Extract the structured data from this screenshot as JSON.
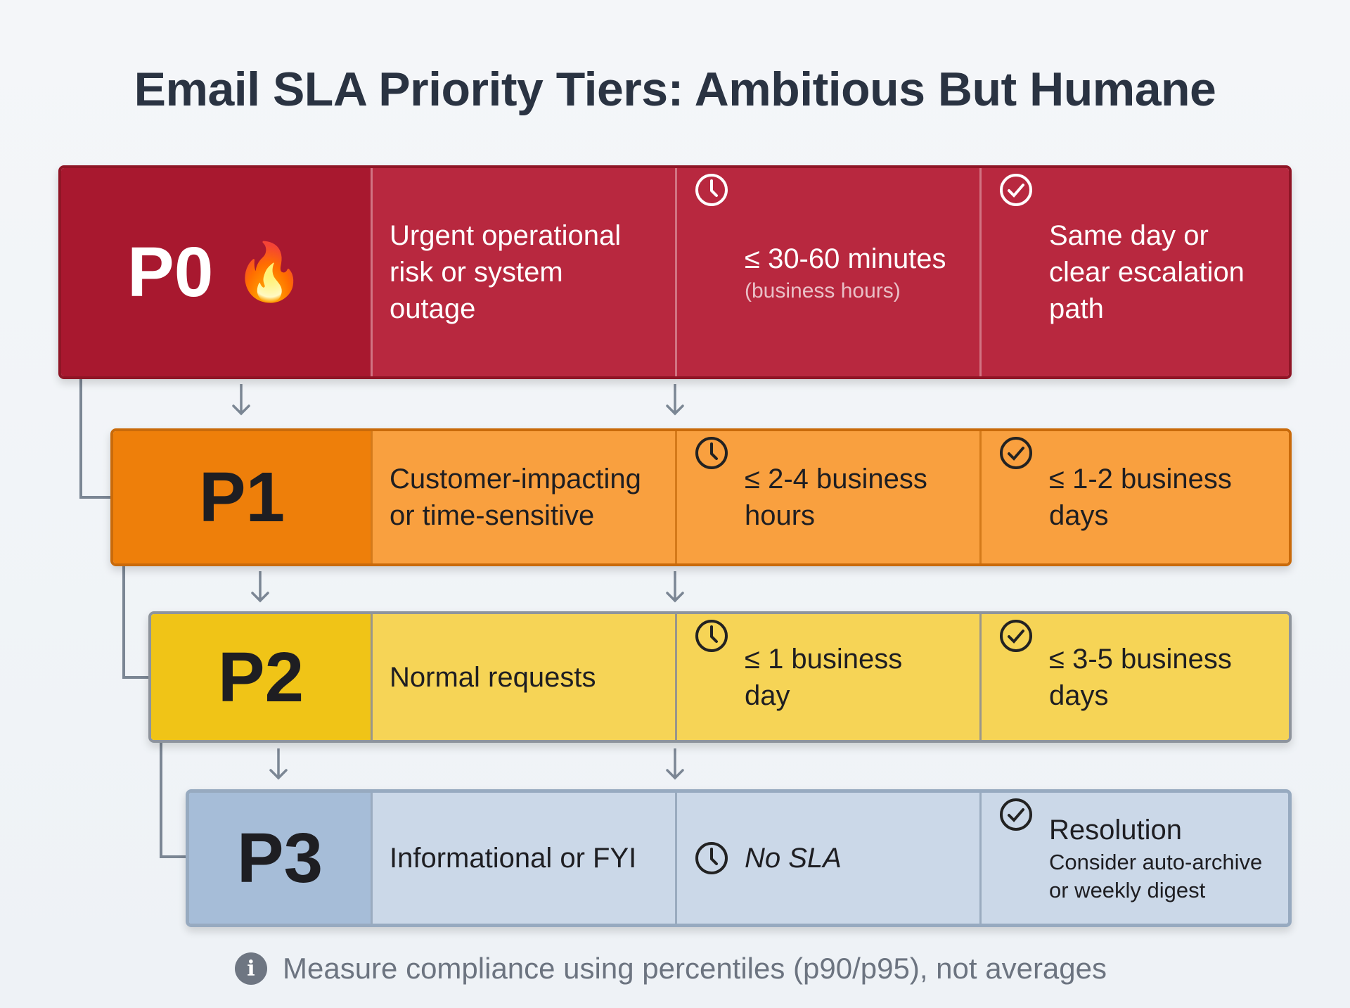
{
  "title": "Email SLA Priority Tiers: Ambitious But Humane",
  "colors": {
    "p0_label": "#a8182f",
    "p0_cells": "#b8283f",
    "p1_label": "#ee7f0a",
    "p1_cells": "#f9a03f",
    "p2_label": "#f0c417",
    "p2_cells": "#f6d456",
    "p3_label": "#a6bdd8",
    "p3_cells": "#cbd8e8"
  },
  "tiers": [
    {
      "label": "P0",
      "emoji": "🔥",
      "description": "Urgent operational risk or system outage",
      "response": "≤ 30-60 minutes",
      "response_note": "(business hours)",
      "resolution": "Same day or clear escalation path"
    },
    {
      "label": "P1",
      "description": "Customer-impacting or time-sensitive",
      "response": "≤ 2-4 business hours",
      "resolution": "≤ 1-2 business days"
    },
    {
      "label": "P2",
      "description": "Normal requests",
      "response": "≤ 1 business day",
      "resolution": "≤ 3-5 business days"
    },
    {
      "label": "P3",
      "description": "Informational or FYI",
      "response": "No SLA",
      "resolution": "Resolution",
      "resolution_note": "Consider auto-archive or weekly digest"
    }
  ],
  "icons": {
    "response": "clock-icon",
    "resolution": "check-circle-icon",
    "footer": "info-icon"
  },
  "footer": {
    "icon_glyph": "i",
    "text": "Measure compliance using percentiles (p90/p95), not averages"
  }
}
